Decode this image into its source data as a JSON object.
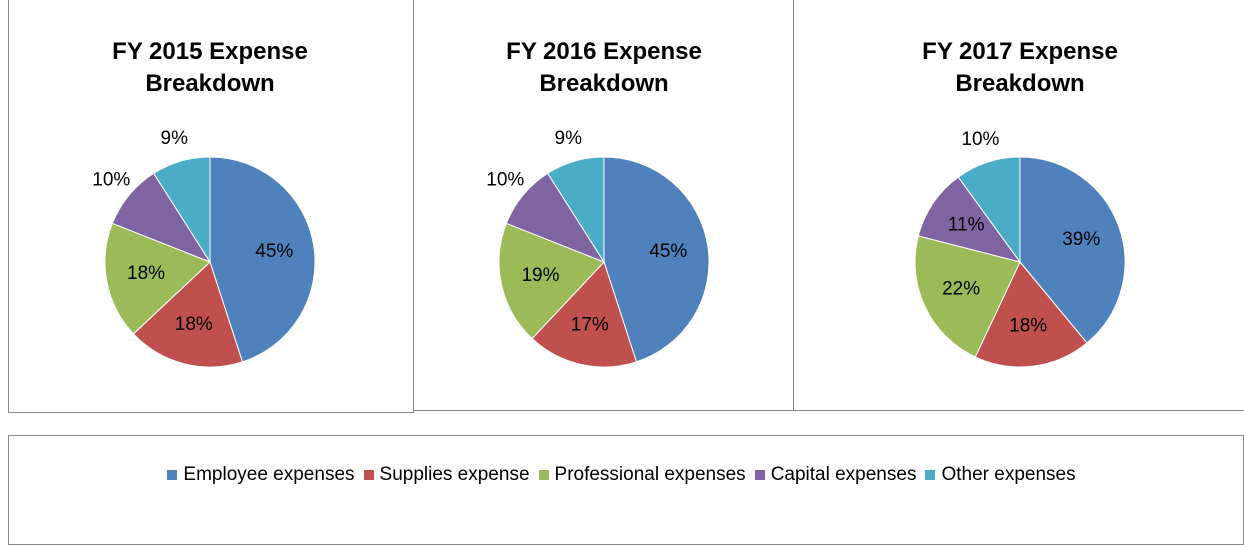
{
  "chart_data": [
    {
      "type": "pie",
      "title": "FY 2015 Expense Breakdown",
      "values": [
        45,
        18,
        18,
        10,
        9
      ],
      "value_labels": [
        "45%",
        "18%",
        "18%",
        "10%",
        "9%"
      ]
    },
    {
      "type": "pie",
      "title": "FY 2016 Expense Breakdown",
      "values": [
        45,
        17,
        19,
        10,
        9
      ],
      "value_labels": [
        "45%",
        "17%",
        "19%",
        "10%",
        "9%"
      ]
    },
    {
      "type": "pie",
      "title": "FY 2017 Expense Breakdown",
      "values": [
        39,
        18,
        22,
        11,
        10
      ],
      "value_labels": [
        "39%",
        "18%",
        "22%",
        "11%",
        "10%"
      ]
    }
  ],
  "legend": {
    "categories": [
      "Employee expenses",
      "Supplies expense",
      "Professional expenses",
      "Capital expenses",
      "Other expenses"
    ],
    "colors": [
      "#4f81bd",
      "#c0504d",
      "#9bbb59",
      "#8064a2",
      "#4bacc6"
    ]
  }
}
